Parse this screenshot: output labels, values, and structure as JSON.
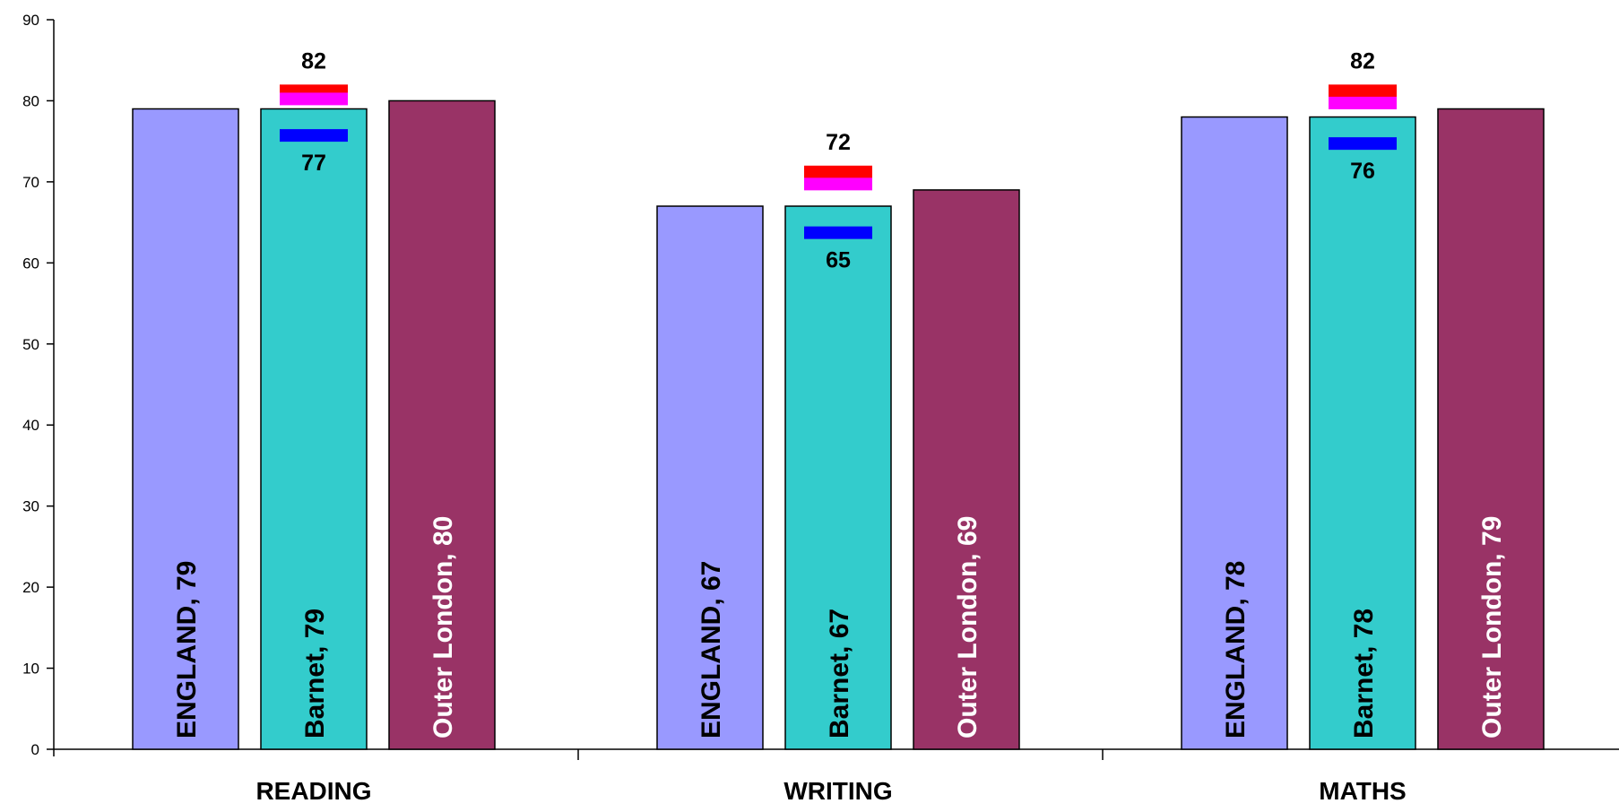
{
  "chart_data": {
    "type": "bar",
    "categories": [
      "READING",
      "WRITING",
      "MATHS"
    ],
    "ylim": [
      0,
      90
    ],
    "yticks": [
      0,
      10,
      20,
      30,
      40,
      50,
      60,
      70,
      80,
      90
    ],
    "grid": false,
    "series": [
      {
        "name": "ENGLAND",
        "values": [
          79,
          67,
          78
        ],
        "color": "#9999ff",
        "label_color": "#000000"
      },
      {
        "name": "Barnet",
        "values": [
          79,
          67,
          78
        ],
        "color": "#33cccc",
        "label_color": "#000000"
      },
      {
        "name": "Outer London",
        "values": [
          80,
          69,
          79
        ],
        "color": "#993366",
        "label_color": "#ffffff"
      }
    ],
    "markers": [
      {
        "series": "Barnet",
        "upper_label": [
          82,
          72,
          82
        ],
        "lower_label": [
          77,
          65,
          76
        ],
        "red": [
          82,
          72,
          82
        ],
        "magenta": [
          81,
          70.5,
          80.5
        ],
        "blue": [
          76.5,
          64.5,
          75.5
        ],
        "colors": {
          "red": "#ff0000",
          "magenta": "#ff00ff",
          "blue": "#0000ff"
        }
      }
    ]
  }
}
